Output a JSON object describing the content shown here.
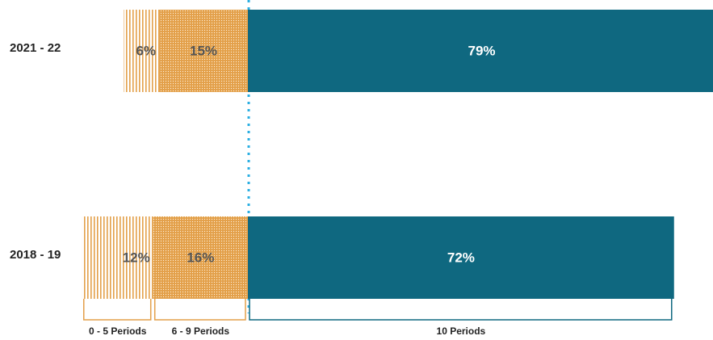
{
  "chart_data": {
    "type": "bar",
    "categories": [
      "2021 - 22",
      "2018 - 19"
    ],
    "series": [
      {
        "name": "0 - 5 Periods",
        "color": "#e3a04a",
        "values": [
          6,
          12
        ],
        "value_labels": [
          "6%",
          "12%"
        ]
      },
      {
        "name": "6 - 9 Periods",
        "color": "#e3a04a",
        "values": [
          15,
          16
        ],
        "value_labels": [
          "15%",
          "16%"
        ]
      },
      {
        "name": "10 Periods",
        "color": "#0f6880",
        "values": [
          79,
          72
        ],
        "value_labels": [
          "79%",
          "72%"
        ]
      }
    ]
  }
}
